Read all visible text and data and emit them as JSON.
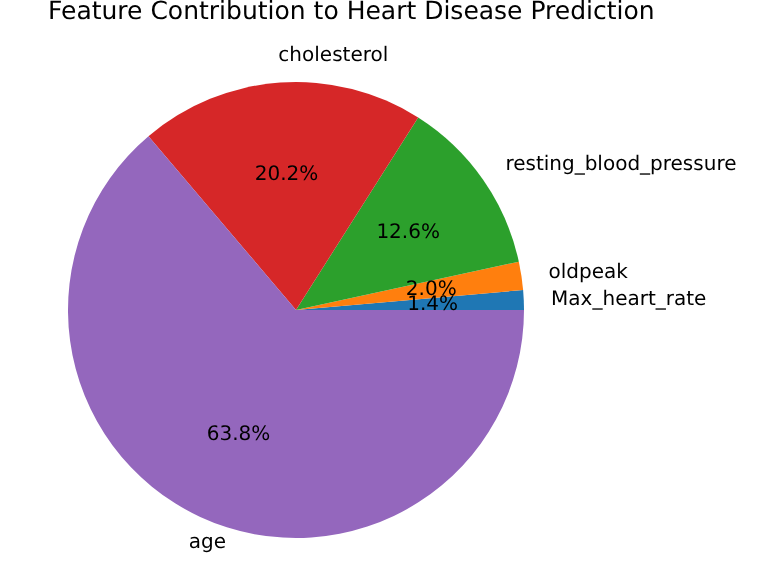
{
  "chart_data": {
    "type": "pie",
    "title": "Feature Contribution to Heart Disease Prediction",
    "categories": [
      "Max_heart_rate",
      "oldpeak",
      "resting_blood_pressure",
      "cholesterol",
      "age"
    ],
    "values": [
      1.4,
      2.0,
      12.6,
      20.2,
      63.8
    ],
    "value_labels": [
      "1.4%",
      "2.0%",
      "12.6%",
      "20.2%",
      "63.8%"
    ],
    "colors": [
      "#1f77b4",
      "#ff7f0e",
      "#2ca02c",
      "#d62728",
      "#9467bd"
    ]
  }
}
